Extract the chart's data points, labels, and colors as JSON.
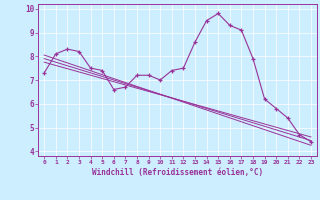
{
  "title": "",
  "xlabel": "Windchill (Refroidissement éolien,°C)",
  "background_color": "#cceeff",
  "line_color": "#993399",
  "x_values": [
    0,
    1,
    2,
    3,
    4,
    5,
    6,
    7,
    8,
    9,
    10,
    11,
    12,
    13,
    14,
    15,
    16,
    17,
    18,
    19,
    20,
    21,
    22,
    23
  ],
  "y_main": [
    7.3,
    8.1,
    8.3,
    8.2,
    7.5,
    7.4,
    6.6,
    6.7,
    7.2,
    7.2,
    7.0,
    7.4,
    7.5,
    8.6,
    9.5,
    9.8,
    9.3,
    9.1,
    7.9,
    6.2,
    5.8,
    5.4,
    4.7,
    4.4
  ],
  "ylim": [
    3.8,
    10.2
  ],
  "xlim": [
    -0.5,
    23.5
  ],
  "y_ticks": [
    4,
    5,
    6,
    7,
    8,
    9,
    10
  ],
  "x_ticks": [
    0,
    1,
    2,
    3,
    4,
    5,
    6,
    7,
    8,
    9,
    10,
    11,
    12,
    13,
    14,
    15,
    16,
    17,
    18,
    19,
    20,
    21,
    22,
    23
  ],
  "trend_lines": [
    {
      "x0": 0,
      "y0": 8.05,
      "x1": 23,
      "y1": 4.25
    },
    {
      "x0": 0,
      "y0": 7.9,
      "x1": 23,
      "y1": 4.45
    },
    {
      "x0": 0,
      "y0": 7.75,
      "x1": 23,
      "y1": 4.6
    }
  ]
}
